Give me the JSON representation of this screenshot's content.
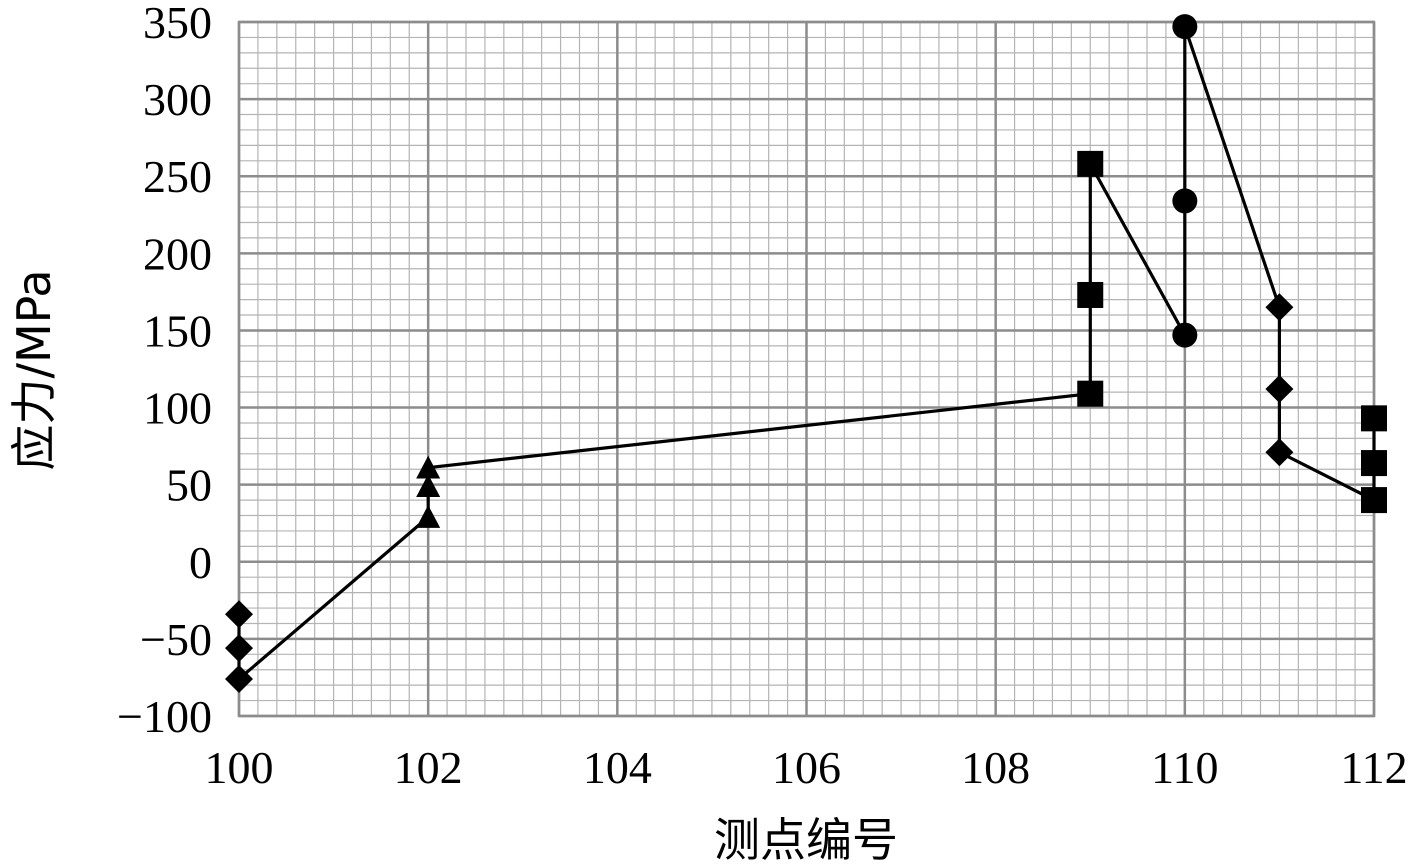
{
  "chart_data": {
    "type": "line",
    "xlabel": "测点编号",
    "ylabel": "应力/MPa",
    "xlim": [
      100,
      112
    ],
    "ylim": [
      -100,
      350
    ],
    "x_ticks": [
      100,
      102,
      104,
      106,
      108,
      110,
      112
    ],
    "y_ticks": [
      -100,
      -50,
      0,
      50,
      100,
      150,
      200,
      250,
      300,
      350
    ],
    "y_tick_labels": [
      "−100",
      "−50",
      "0",
      "50",
      "100",
      "150",
      "200",
      "250",
      "300",
      "350"
    ],
    "grid": true,
    "legend": "none",
    "line_path": [
      [
        100,
        -34
      ],
      [
        100,
        -56
      ],
      [
        100,
        -76
      ],
      [
        102,
        29
      ],
      [
        102,
        49
      ],
      [
        102,
        61
      ],
      [
        109,
        109
      ],
      [
        109,
        173
      ],
      [
        109,
        258
      ],
      [
        110,
        147
      ],
      [
        110,
        234
      ],
      [
        110,
        347
      ],
      [
        111,
        165
      ],
      [
        111,
        112
      ],
      [
        111,
        71
      ],
      [
        112,
        40
      ],
      [
        112,
        64
      ],
      [
        112,
        93
      ]
    ],
    "series": [
      {
        "marker": "diamond",
        "points": [
          [
            100,
            -34
          ],
          [
            100,
            -56
          ],
          [
            100,
            -76
          ]
        ]
      },
      {
        "marker": "triangle",
        "points": [
          [
            102,
            29
          ],
          [
            102,
            49
          ],
          [
            102,
            61
          ]
        ]
      },
      {
        "marker": "square",
        "points": [
          [
            109,
            109
          ],
          [
            109,
            173
          ],
          [
            109,
            258
          ]
        ]
      },
      {
        "marker": "circle",
        "points": [
          [
            110,
            147
          ],
          [
            110,
            234
          ],
          [
            110,
            347
          ]
        ]
      },
      {
        "marker": "diamond",
        "points": [
          [
            111,
            165
          ],
          [
            111,
            112
          ],
          [
            111,
            71
          ]
        ]
      },
      {
        "marker": "square",
        "points": [
          [
            112,
            40
          ],
          [
            112,
            64
          ],
          [
            112,
            93
          ]
        ]
      }
    ],
    "colors": {
      "line": "#000000",
      "marker": "#000000",
      "grid_major": "#8c8c8c",
      "grid_minor": "#b4b4b4"
    }
  }
}
